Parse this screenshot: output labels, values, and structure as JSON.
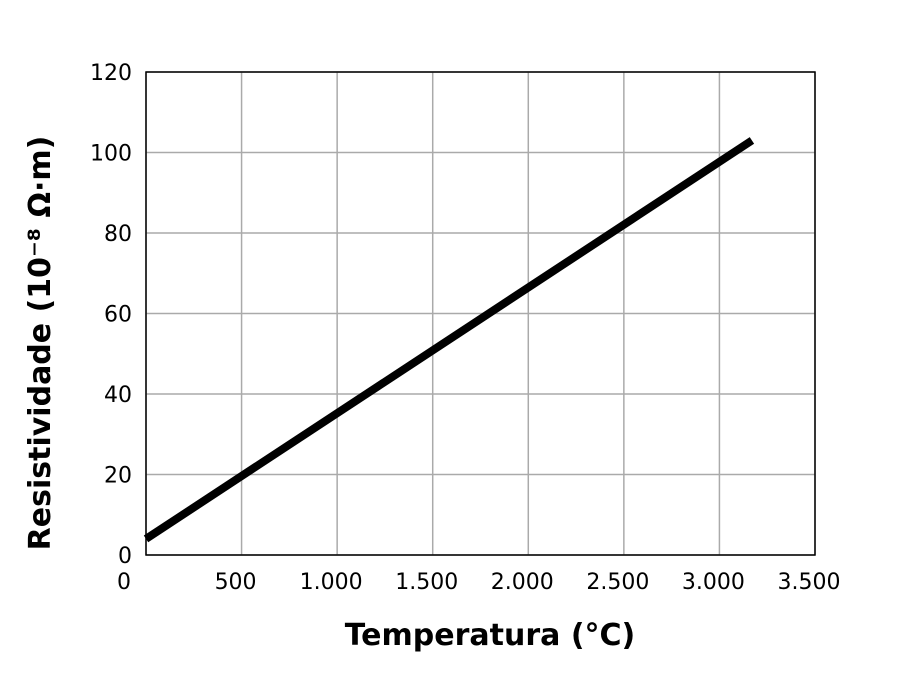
{
  "chart_data": {
    "type": "line",
    "title": "",
    "xlabel": "Temperatura (°C)",
    "ylabel": "Resistividade (10⁻⁸ Ω·m)",
    "xlim": [
      0,
      3500
    ],
    "ylim": [
      0,
      120
    ],
    "x_ticks": [
      0,
      500,
      1000,
      1500,
      2000,
      2500,
      3000,
      3500
    ],
    "x_tick_labels": [
      "0",
      "500",
      "1.000",
      "1.500",
      "2.000",
      "2.500",
      "3.000",
      "3.500"
    ],
    "y_ticks": [
      0,
      20,
      40,
      60,
      80,
      100,
      120
    ],
    "y_tick_labels": [
      "0",
      "20",
      "40",
      "60",
      "80",
      "100",
      "120"
    ],
    "grid": true,
    "legend": "none",
    "series": [
      {
        "x": [
          0,
          3170
        ],
        "y": [
          4,
          103
        ]
      }
    ],
    "line_color": "#000000",
    "grid_color": "#aaaaaa"
  }
}
